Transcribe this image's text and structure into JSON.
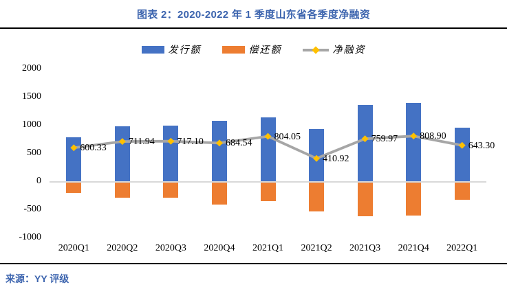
{
  "title": "图表 2：2020-2022 年 1 季度山东省各季度净融资",
  "source": "来源：YY 评级",
  "colors": {
    "title_text": "#3C64AE",
    "issuance_bar": "#4472C4",
    "repayment_bar": "#ED7D31",
    "net_line": "#A6A6A6",
    "net_marker": "#FFC000",
    "zero_line": "#D9D9D9",
    "rule": "#000000"
  },
  "legend": [
    {
      "label": "发行额"
    },
    {
      "label": "偿还额"
    },
    {
      "label": "净融资"
    }
  ],
  "chart_data": {
    "type": "bar",
    "subtype": "bar-line-combo",
    "title": "图表 2：2020-2022 年 1 季度山东省各季度净融资",
    "categories": [
      "2020Q1",
      "2020Q2",
      "2020Q3",
      "2020Q4",
      "2021Q1",
      "2021Q2",
      "2021Q3",
      "2021Q4",
      "2022Q1"
    ],
    "series": [
      {
        "name": "发行额",
        "type": "bar",
        "color": "#4472C4",
        "values": [
          790,
          985,
          990,
          1075,
          1140,
          930,
          1365,
          1400,
          960
        ]
      },
      {
        "name": "偿还额",
        "type": "bar",
        "color": "#ED7D31",
        "values": [
          -189.67,
          -273.06,
          -272.9,
          -390.46,
          -335.95,
          -519.08,
          -605.03,
          -591.1,
          -316.7
        ]
      },
      {
        "name": "净融资",
        "type": "line",
        "color": "#A6A6A6",
        "marker_color": "#FFC000",
        "values": [
          600.33,
          711.94,
          717.1,
          684.54,
          804.05,
          410.92,
          759.97,
          808.9,
          643.3
        ],
        "point_labels": [
          "600.33",
          "711.94",
          "717.10",
          "684.54",
          "804.05",
          "410.92",
          "759.97",
          "808.90",
          "643.30"
        ]
      }
    ],
    "xlabel": "",
    "ylabel": "",
    "ylim": [
      -1000,
      2000
    ],
    "yticks": [
      2000,
      1500,
      1000,
      500,
      0,
      -500,
      -1000
    ],
    "grid": false,
    "legend_position": "top-center"
  }
}
